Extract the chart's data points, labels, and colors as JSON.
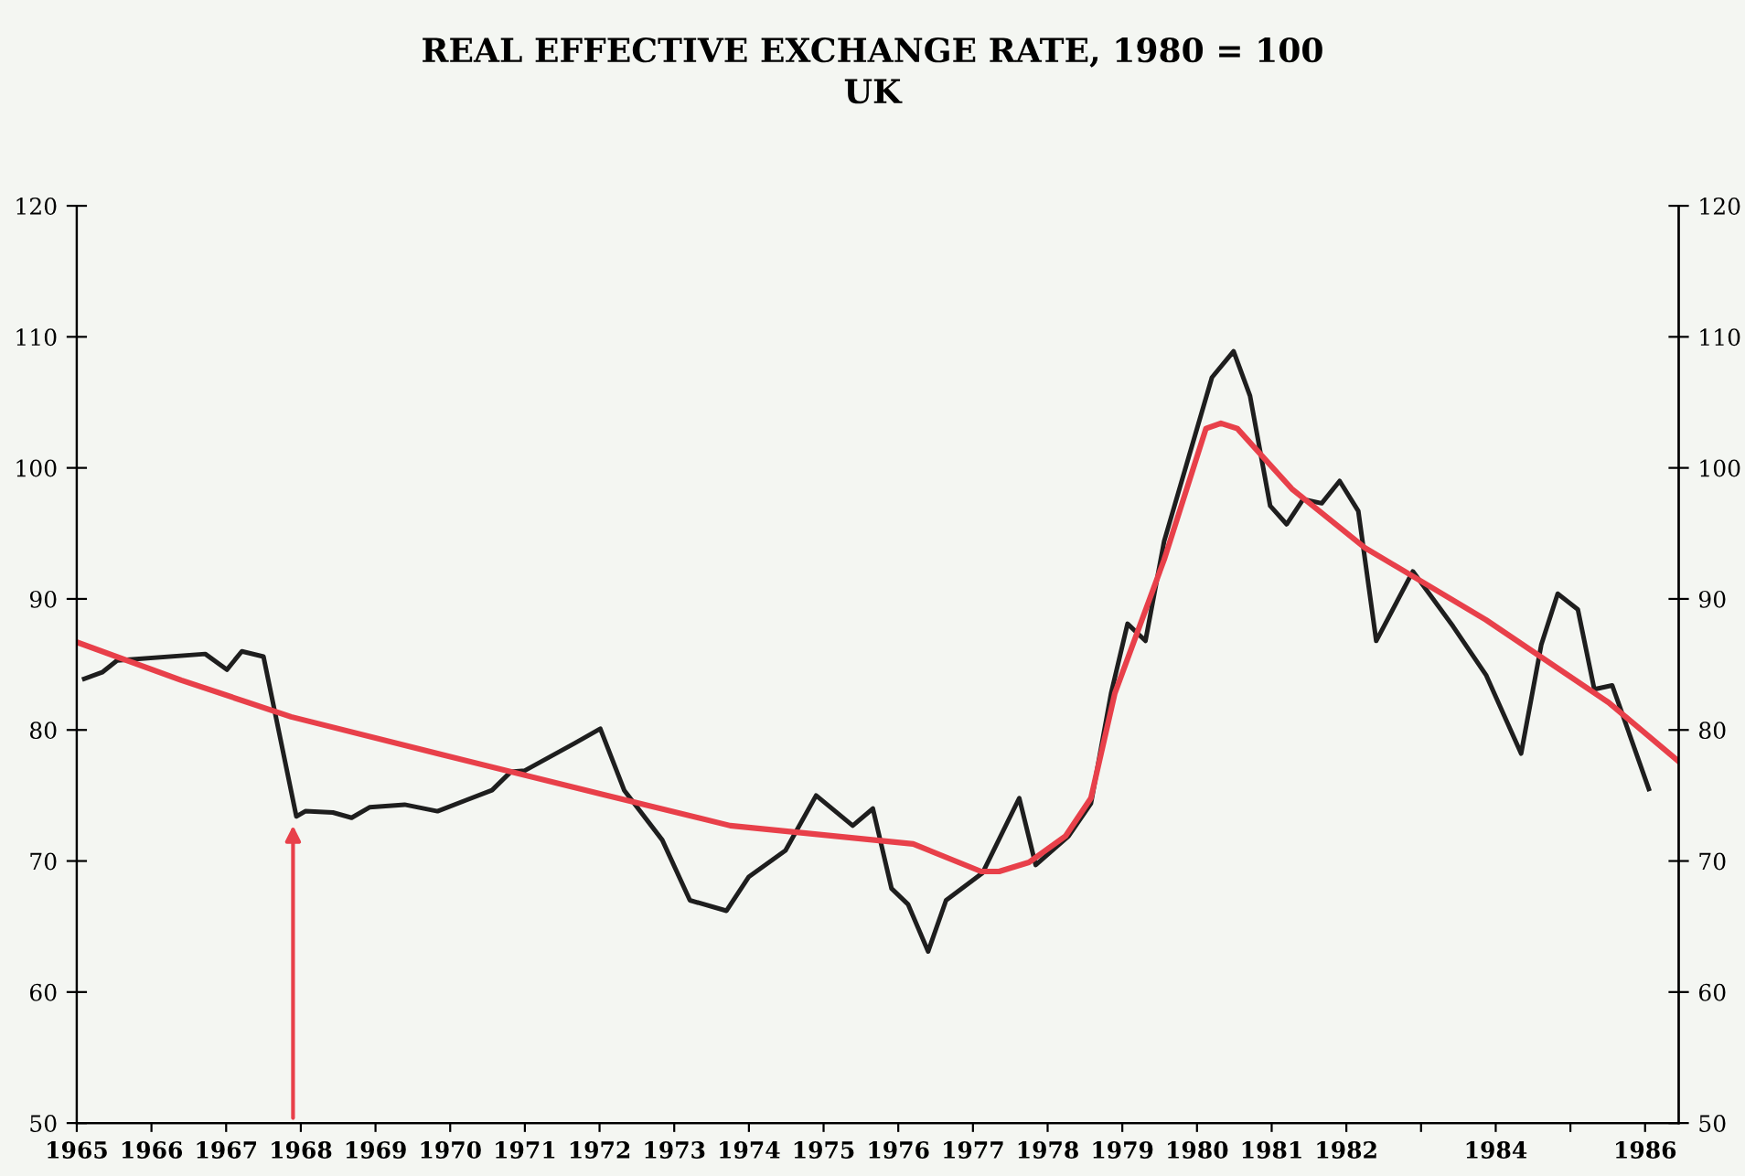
{
  "chart_data": {
    "type": "line",
    "title": "REAL EFFECTIVE EXCHANGE RATE, 1980 = 100",
    "subtitle": "UK",
    "xlim": [
      1965,
      1986.45
    ],
    "xticks": [
      1965,
      1966,
      1967,
      1968,
      1969,
      1970,
      1971,
      1972,
      1973,
      1974,
      1975,
      1976,
      1977,
      1978,
      1979,
      1980,
      1981,
      1982,
      {
        "value": 1983,
        "label": null
      },
      1984,
      {
        "value": 1985,
        "label": null
      },
      1986
    ],
    "ylim": [
      50,
      120
    ],
    "yticks": [
      50,
      60,
      70,
      80,
      90,
      100,
      110,
      120
    ],
    "y2lim": [
      50,
      120
    ],
    "y2ticks": [
      50,
      60,
      70,
      80,
      90,
      100,
      110,
      120
    ],
    "grid": false,
    "legend": false,
    "marker": "none",
    "line_style": "solid",
    "series": [
      {
        "color": "#1e1e1e",
        "x": [
          1965.1,
          1965.34,
          1965.54,
          1966.72,
          1967.01,
          1967.21,
          1967.5,
          1967.94,
          1968.06,
          1968.43,
          1968.68,
          1968.92,
          1969.39,
          1969.83,
          1970.56,
          1970.81,
          1971.0,
          1971.67,
          1972.01,
          1972.33,
          1972.84,
          1973.21,
          1973.7,
          1974.0,
          1974.49,
          1974.9,
          1975.39,
          1975.66,
          1975.91,
          1976.13,
          1976.4,
          1976.64,
          1977.13,
          1977.62,
          1977.84,
          1978.28,
          1978.58,
          1978.85,
          1979.07,
          1979.31,
          1979.56,
          1980.2,
          1980.49,
          1980.71,
          1980.98,
          1981.2,
          1981.42,
          1981.67,
          1981.91,
          1982.16,
          1982.4,
          1982.89,
          1983.43,
          1983.87,
          1984.34,
          1984.61,
          1984.83,
          1985.1,
          1985.32,
          1985.56,
          1986.05
        ],
        "values": [
          83.9,
          84.4,
          85.3,
          85.8,
          84.6,
          86.0,
          85.6,
          73.4,
          73.8,
          73.7,
          73.3,
          74.1,
          74.3,
          73.8,
          75.4,
          76.8,
          76.9,
          79.0,
          80.1,
          75.4,
          71.6,
          67.0,
          66.2,
          68.8,
          70.8,
          75.0,
          72.7,
          74.0,
          67.9,
          66.7,
          63.1,
          67.0,
          69.1,
          74.8,
          69.7,
          71.9,
          74.4,
          82.8,
          88.1,
          86.8,
          94.4,
          106.9,
          108.9,
          105.5,
          97.1,
          95.7,
          97.6,
          97.3,
          99.0,
          96.7,
          86.8,
          92.1,
          87.9,
          84.2,
          78.2,
          86.5,
          90.4,
          89.2,
          83.1,
          83.4,
          75.5
        ]
      },
      {
        "color": "#e8404a",
        "x": [
          1965.0,
          1966.4,
          1967.87,
          1969.83,
          1972.03,
          1973.75,
          1976.2,
          1977.11,
          1977.35,
          1977.75,
          1978.24,
          1978.58,
          1978.9,
          1979.56,
          1980.12,
          1980.32,
          1980.54,
          1981.27,
          1982.25,
          1983.87,
          1985.51,
          1986.45
        ],
        "values": [
          86.7,
          83.8,
          81.0,
          78.2,
          75.1,
          72.7,
          71.3,
          69.2,
          69.2,
          69.9,
          71.9,
          74.8,
          82.8,
          93.0,
          103.0,
          103.4,
          103.0,
          98.4,
          93.9,
          88.4,
          82.1,
          77.6
        ]
      }
    ]
  }
}
